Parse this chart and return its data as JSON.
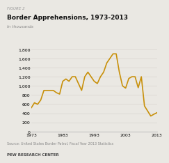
{
  "title": "Border Apprehensions, 1973-2013",
  "figure_label": "FIGURE 2",
  "subtitle": "In thousands",
  "source_text": "Source: United States Border Patrol, Fiscal Year 2013 Statistics",
  "footer_text": "PEW RESEARCH CENTER",
  "line_color": "#C8900A",
  "background_color": "#EAE8E3",
  "plot_bg_color": "#EAE8E3",
  "ylim": [
    0,
    1800
  ],
  "yticks": [
    0,
    200,
    400,
    600,
    800,
    1000,
    1200,
    1400,
    1600,
    1800
  ],
  "xtick_positions": [
    1973,
    1983,
    1993,
    2003,
    2013
  ],
  "xtick_labels": [
    "1973",
    "1983",
    "1993",
    "2003",
    "2013"
  ],
  "years": [
    1973,
    1974,
    1975,
    1976,
    1977,
    1978,
    1979,
    1980,
    1981,
    1982,
    1983,
    1984,
    1985,
    1986,
    1987,
    1988,
    1989,
    1990,
    1991,
    1992,
    1993,
    1994,
    1995,
    1996,
    1997,
    1998,
    1999,
    2000,
    2001,
    2002,
    2003,
    2004,
    2005,
    2006,
    2007,
    2008,
    2009,
    2010,
    2011,
    2012,
    2013
  ],
  "values": [
    520,
    630,
    596,
    690,
    900,
    900,
    900,
    900,
    850,
    820,
    1100,
    1150,
    1100,
    1200,
    1200,
    1050,
    900,
    1200,
    1300,
    1200,
    1100,
    1050,
    1200,
    1300,
    1500,
    1600,
    1700,
    1700,
    1300,
    1000,
    950,
    1160,
    1200,
    1200,
    960,
    1200,
    560,
    450,
    340,
    380,
    415
  ]
}
